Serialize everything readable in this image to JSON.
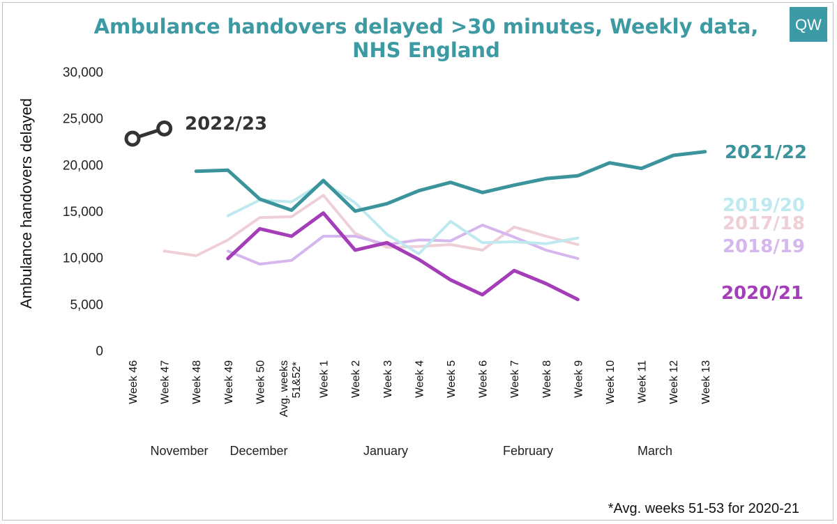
{
  "chart_data": {
    "type": "line",
    "title_line1": "Ambulance handovers delayed >30 minutes, Weekly data,",
    "title_line2": "NHS England",
    "ylabel": "Ambulance handovers delayed",
    "ylim": [
      0,
      30000
    ],
    "yticks": [
      "30,000",
      "25,000",
      "20,000",
      "15,000",
      "10,000",
      "5,000",
      "0"
    ],
    "categories": [
      "Week 46",
      "Week 47",
      "Week 48",
      "Week 49",
      "Week 50",
      "Avg. weeks 51&52*",
      "Week 1",
      "Week 2",
      "Week 3",
      "Week 4",
      "Week 5",
      "Week 6",
      "Week 7",
      "Week 8",
      "Week 9",
      "Week 10",
      "Week 11",
      "Week 12",
      "Week 13"
    ],
    "months": [
      "November",
      "December",
      "January",
      "February",
      "March"
    ],
    "series": [
      {
        "name": "2017/18",
        "color": "#efcfd6",
        "values": [
          null,
          10700,
          10200,
          11900,
          14300,
          14400,
          16700,
          12600,
          11100,
          11200,
          11400,
          10800,
          13300,
          12300,
          11400,
          null,
          null,
          null,
          null
        ]
      },
      {
        "name": "2018/19",
        "color": "#d6b6ee",
        "values": [
          null,
          null,
          null,
          10700,
          9300,
          9700,
          12300,
          12300,
          11400,
          11900,
          11800,
          13500,
          12200,
          10800,
          9900,
          null,
          null,
          null,
          null
        ]
      },
      {
        "name": "2019/20",
        "color": "#bde9ef",
        "values": [
          null,
          null,
          null,
          14500,
          16200,
          16000,
          18100,
          15900,
          12500,
          10400,
          13900,
          11600,
          11700,
          11500,
          12100,
          null,
          null,
          null,
          null
        ]
      },
      {
        "name": "2020/21",
        "color": "#a43eb8",
        "values": [
          null,
          null,
          null,
          9900,
          13100,
          12300,
          14800,
          10800,
          11600,
          9800,
          7600,
          6000,
          8600,
          7200,
          5500,
          null,
          null,
          null,
          null
        ]
      },
      {
        "name": "2021/22",
        "color": "#3b949b",
        "values": [
          null,
          null,
          19300,
          19400,
          16300,
          15100,
          18300,
          15000,
          15800,
          17200,
          18100,
          17000,
          17800,
          18500,
          18800,
          20200,
          19600,
          21000,
          21400
        ]
      },
      {
        "name": "2022/23",
        "color": "#333333",
        "values": [
          22800,
          23900,
          null,
          null,
          null,
          null,
          null,
          null,
          null,
          null,
          null,
          null,
          null,
          null,
          null,
          null,
          null,
          null,
          null
        ]
      }
    ],
    "legend": "inline-right",
    "grid": false
  },
  "footnote": "*Avg. weeks 51-53 for 2020-21",
  "logo": "QW"
}
